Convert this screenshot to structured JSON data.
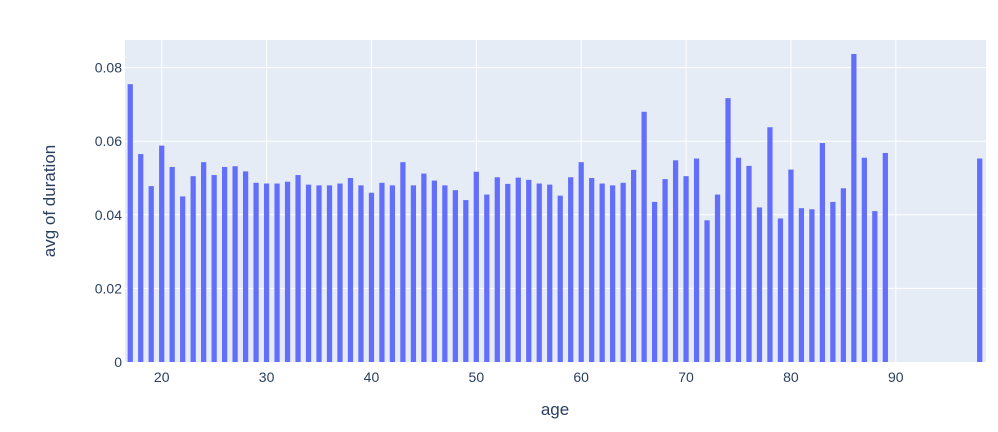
{
  "chart_data": {
    "type": "bar",
    "title": "",
    "xlabel": "age",
    "ylabel": "avg of duration",
    "xlim": [
      16.5,
      98.6
    ],
    "ylim": [
      0,
      0.0875
    ],
    "x_ticks": [
      20,
      30,
      40,
      50,
      60,
      70,
      80,
      90
    ],
    "x_tick_labels": [
      "20",
      "30",
      "40",
      "50",
      "60",
      "70",
      "80",
      "90"
    ],
    "y_ticks": [
      0,
      0.02,
      0.04,
      0.06,
      0.08
    ],
    "y_tick_labels": [
      "0",
      "0.02",
      "0.04",
      "0.06",
      "0.08"
    ],
    "grid": true,
    "bar_color": "#636efa",
    "plot_bg": "#e5ecf6",
    "text_color": "#2a3f5f",
    "x": [
      17,
      18,
      19,
      20,
      21,
      22,
      23,
      24,
      25,
      26,
      27,
      28,
      29,
      30,
      31,
      32,
      33,
      34,
      35,
      36,
      37,
      38,
      39,
      40,
      41,
      42,
      43,
      44,
      45,
      46,
      47,
      48,
      49,
      50,
      51,
      52,
      53,
      54,
      55,
      56,
      57,
      58,
      59,
      60,
      61,
      62,
      63,
      64,
      65,
      66,
      67,
      68,
      69,
      70,
      71,
      72,
      73,
      74,
      75,
      76,
      77,
      78,
      79,
      80,
      81,
      82,
      83,
      84,
      85,
      86,
      87,
      88,
      89,
      98
    ],
    "values": [
      0.0755,
      0.0565,
      0.0478,
      0.0588,
      0.053,
      0.045,
      0.0505,
      0.0543,
      0.0508,
      0.053,
      0.0532,
      0.0518,
      0.0487,
      0.0485,
      0.0485,
      0.049,
      0.0508,
      0.0482,
      0.048,
      0.048,
      0.0485,
      0.05,
      0.048,
      0.046,
      0.0487,
      0.048,
      0.0543,
      0.048,
      0.0512,
      0.0493,
      0.048,
      0.0467,
      0.044,
      0.0517,
      0.0455,
      0.0502,
      0.0484,
      0.0501,
      0.0495,
      0.0485,
      0.0482,
      0.0452,
      0.0502,
      0.0543,
      0.05,
      0.0485,
      0.048,
      0.0487,
      0.0522,
      0.068,
      0.0435,
      0.0497,
      0.0548,
      0.0505,
      0.0553,
      0.0385,
      0.0455,
      0.0717,
      0.0555,
      0.0533,
      0.042,
      0.0638,
      0.039,
      0.0523,
      0.0418,
      0.0415,
      0.0595,
      0.0435,
      0.0472,
      0.0837,
      0.0555,
      0.041,
      0.0568,
      0.0553
    ]
  }
}
